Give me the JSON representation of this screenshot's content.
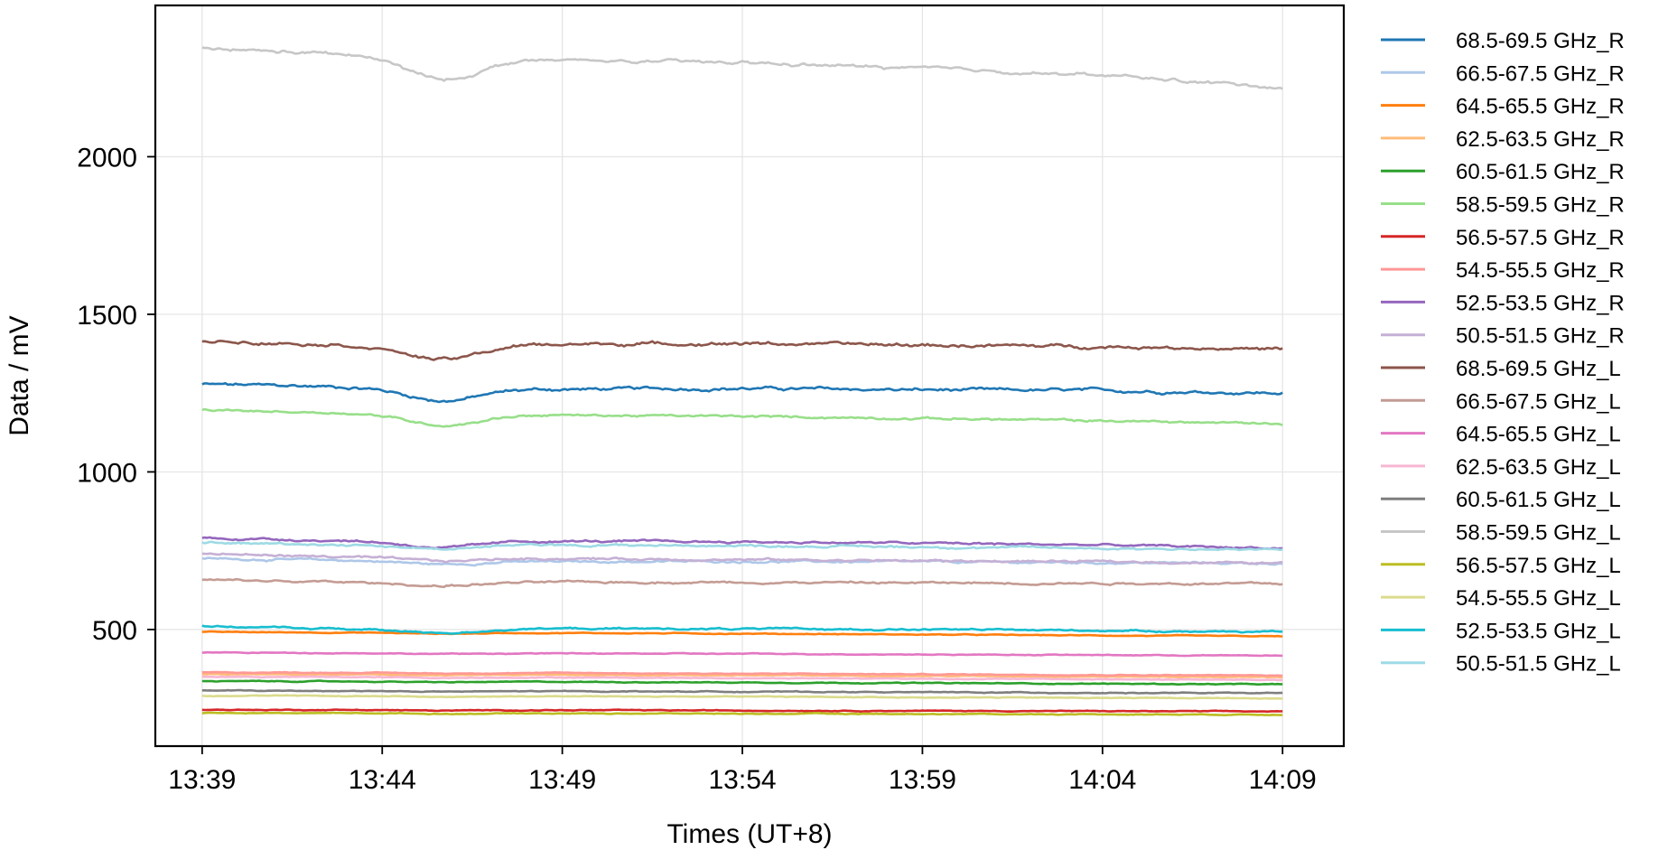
{
  "chart_data": {
    "type": "line",
    "title": "",
    "xlabel": "Times (UT+8)",
    "ylabel": "Data / mV",
    "x_ticks": [
      "13:39",
      "13:44",
      "13:49",
      "13:54",
      "13:59",
      "14:04",
      "14:09"
    ],
    "y_ticks": [
      500,
      1000,
      1500,
      2000
    ],
    "x_range_minutes": [
      -1.3,
      31.7
    ],
    "x_data_range_minutes": [
      0.0,
      30.0
    ],
    "ylim": [
      130,
      2480
    ],
    "grid": true,
    "legend_position": "outside-right",
    "series": [
      {
        "name": "68.5-69.5 GHz_R",
        "color": "#1f77b4",
        "dip": 40,
        "noise": 6,
        "x": [
          0,
          5,
          10,
          15,
          20,
          25,
          30
        ],
        "values": [
          1278,
          1268,
          1262,
          1265,
          1260,
          1258,
          1250
        ]
      },
      {
        "name": "66.5-67.5 GHz_R",
        "color": "#aec7e8",
        "dip": 10,
        "noise": 4,
        "x": [
          0,
          5,
          10,
          15,
          20,
          25,
          30
        ],
        "values": [
          725,
          718,
          715,
          716,
          714,
          712,
          710
        ]
      },
      {
        "name": "64.5-65.5 GHz_R",
        "color": "#ff7f0e",
        "dip": 3,
        "noise": 1.5,
        "x": [
          0,
          5,
          10,
          15,
          20,
          25,
          30
        ],
        "values": [
          492,
          490,
          489,
          487,
          484,
          481,
          478
        ]
      },
      {
        "name": "62.5-63.5 GHz_R",
        "color": "#ffbb78",
        "dip": 2,
        "noise": 1.5,
        "x": [
          0,
          5,
          10,
          15,
          20,
          25,
          30
        ],
        "values": [
          358,
          357,
          356,
          355,
          353,
          351,
          349
        ]
      },
      {
        "name": "60.5-61.5 GHz_R",
        "color": "#2ca02c",
        "dip": 2,
        "noise": 1.5,
        "x": [
          0,
          5,
          10,
          15,
          20,
          25,
          30
        ],
        "values": [
          336,
          335,
          334,
          332,
          330,
          328,
          326
        ]
      },
      {
        "name": "58.5-59.5 GHz_R",
        "color": "#98df8a",
        "dip": 35,
        "noise": 4,
        "x": [
          0,
          5,
          10,
          15,
          20,
          25,
          30
        ],
        "values": [
          1196,
          1185,
          1180,
          1176,
          1170,
          1162,
          1153
        ]
      },
      {
        "name": "56.5-57.5 GHz_R",
        "color": "#d62728",
        "dip": 2,
        "noise": 1.5,
        "x": [
          0,
          5,
          10,
          15,
          20,
          25,
          30
        ],
        "values": [
          245,
          245,
          244,
          243,
          242,
          241,
          240
        ]
      },
      {
        "name": "54.5-55.5 GHz_R",
        "color": "#ff9896",
        "dip": 2,
        "noise": 1.5,
        "x": [
          0,
          5,
          10,
          15,
          20,
          25,
          30
        ],
        "values": [
          364,
          363,
          362,
          360,
          358,
          356,
          354
        ]
      },
      {
        "name": "52.5-53.5 GHz_R",
        "color": "#9467bd",
        "dip": 20,
        "noise": 4,
        "x": [
          0,
          5,
          10,
          15,
          20,
          25,
          30
        ],
        "values": [
          790,
          780,
          780,
          778,
          774,
          768,
          758
        ]
      },
      {
        "name": "50.5-51.5 GHz_R",
        "color": "#c5b0d5",
        "dip": 10,
        "noise": 4,
        "x": [
          0,
          5,
          10,
          15,
          20,
          25,
          30
        ],
        "values": [
          740,
          728,
          725,
          722,
          718,
          715,
          710
        ]
      },
      {
        "name": "68.5-69.5 GHz_L",
        "color": "#8c564b",
        "dip": 45,
        "noise": 6,
        "x": [
          0,
          5,
          10,
          15,
          20,
          25,
          30
        ],
        "values": [
          1418,
          1400,
          1405,
          1408,
          1402,
          1398,
          1390
        ]
      },
      {
        "name": "66.5-67.5 GHz_L",
        "color": "#c49c94",
        "dip": 10,
        "noise": 4,
        "x": [
          0,
          5,
          10,
          15,
          20,
          25,
          30
        ],
        "values": [
          657,
          648,
          650,
          650,
          648,
          647,
          645
        ]
      },
      {
        "name": "64.5-65.5 GHz_L",
        "color": "#e377c2",
        "dip": 2,
        "noise": 1.5,
        "x": [
          0,
          5,
          10,
          15,
          20,
          25,
          30
        ],
        "values": [
          427,
          425,
          424,
          423,
          421,
          419,
          417
        ]
      },
      {
        "name": "62.5-63.5 GHz_L",
        "color": "#f7b6d2",
        "dip": 2,
        "noise": 1.5,
        "x": [
          0,
          5,
          10,
          15,
          20,
          25,
          30
        ],
        "values": [
          350,
          349,
          348,
          346,
          344,
          342,
          340
        ]
      },
      {
        "name": "60.5-61.5 GHz_L",
        "color": "#7f7f7f",
        "dip": 2,
        "noise": 1.5,
        "x": [
          0,
          5,
          10,
          15,
          20,
          25,
          30
        ],
        "values": [
          306,
          305,
          304,
          303,
          301,
          299,
          298
        ]
      },
      {
        "name": "58.5-59.5 GHz_L",
        "color": "#c7c7c7",
        "dip": 70,
        "noise": 6,
        "x": [
          0,
          5,
          10,
          15,
          20,
          25,
          30
        ],
        "values": [
          2343,
          2320,
          2305,
          2298,
          2280,
          2258,
          2220
        ]
      },
      {
        "name": "56.5-57.5 GHz_L",
        "color": "#bcbd22",
        "dip": 2,
        "noise": 1.5,
        "x": [
          0,
          5,
          10,
          15,
          20,
          25,
          30
        ],
        "values": [
          235,
          235,
          234,
          233,
          232,
          231,
          230
        ]
      },
      {
        "name": "54.5-55.5 GHz_L",
        "color": "#dbdb8d",
        "dip": 2,
        "noise": 1.5,
        "x": [
          0,
          5,
          10,
          15,
          20,
          25,
          30
        ],
        "values": [
          290,
          289,
          288,
          287,
          285,
          283,
          282
        ]
      },
      {
        "name": "52.5-53.5 GHz_L",
        "color": "#17becf",
        "dip": 12,
        "noise": 3,
        "x": [
          0,
          5,
          10,
          15,
          20,
          25,
          30
        ],
        "values": [
          510,
          500,
          503,
          502,
          500,
          497,
          492
        ]
      },
      {
        "name": "50.5-51.5 GHz_L",
        "color": "#9edae5",
        "dip": 12,
        "noise": 4,
        "x": [
          0,
          5,
          10,
          15,
          20,
          25,
          30
        ],
        "values": [
          775,
          768,
          768,
          766,
          762,
          758,
          752
        ]
      }
    ]
  }
}
